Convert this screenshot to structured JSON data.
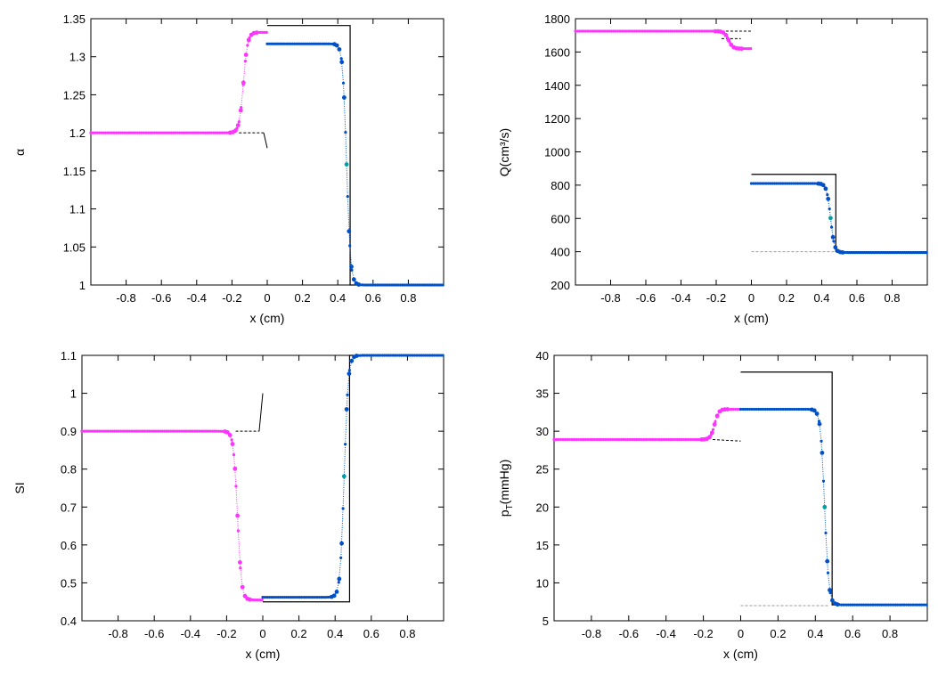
{
  "figure": {
    "colors": {
      "left_state": "#ff33ff",
      "right_state": "#0050c8",
      "right_state_alt": "#00a0a0",
      "exact": "#000000",
      "guide": "#999999"
    }
  },
  "chart_data": [
    {
      "type": "line",
      "name": "alpha",
      "ylabel": "α",
      "xlabel": "x (cm)",
      "xlim": [
        -1.0,
        1.0
      ],
      "ylim": [
        1.0,
        1.35
      ],
      "xticks": [
        -0.8,
        -0.6,
        -0.4,
        -0.2,
        0,
        0.2,
        0.4,
        0.6,
        0.8
      ],
      "xtick_labels": [
        "-0.8",
        "-0.6",
        "-0.4",
        "-0.2",
        "0",
        "0.2",
        "0.4",
        "0.6",
        "0.8"
      ],
      "yticks": [
        1.0,
        1.05,
        1.1,
        1.15,
        1.2,
        1.25,
        1.3,
        1.35
      ],
      "ytick_labels": [
        "1",
        "1.05",
        "1.1",
        "1.15",
        "1.2",
        "1.25",
        "1.3",
        "1.35"
      ],
      "exact_solution": [
        [
          0,
          1.341
        ],
        [
          0.47,
          1.341
        ],
        [
          0.47,
          1.0
        ],
        [
          1.0,
          1.0
        ]
      ],
      "guide_lines": [
        {
          "style": "dashed",
          "points": [
            [
              -0.16,
              1.2
            ],
            [
              -0.02,
              1.2
            ]
          ]
        },
        {
          "style": "solid",
          "points": [
            [
              -0.02,
              1.2
            ],
            [
              0,
              1.18
            ]
          ]
        }
      ],
      "series": [
        {
          "name": "left",
          "x0": -1.0,
          "x1": 0,
          "step": 0.012,
          "levels": [
            1.2,
            1.332
          ],
          "front": -0.135,
          "width": 0.012
        },
        {
          "name": "right",
          "x0": 0,
          "x1": 1.0,
          "step": 0.012,
          "levels": [
            1.317,
            1.0
          ],
          "front": 0.45,
          "width": 0.011
        }
      ]
    },
    {
      "type": "line",
      "name": "Q",
      "ylabel": "Q(cm³/s)",
      "xlabel": "x (cm)",
      "xlim": [
        -1.0,
        1.0
      ],
      "ylim": [
        200,
        1800
      ],
      "xticks": [
        -0.8,
        -0.6,
        -0.4,
        -0.2,
        0,
        0.2,
        0.4,
        0.6,
        0.8
      ],
      "xtick_labels": [
        "-0.8",
        "-0.6",
        "-0.4",
        "-0.2",
        "0",
        "0.2",
        "0.4",
        "0.6",
        "0.8"
      ],
      "yticks": [
        200,
        400,
        600,
        800,
        1000,
        1200,
        1400,
        1600,
        1800
      ],
      "ytick_labels": [
        "200",
        "400",
        "600",
        "800",
        "1000",
        "1200",
        "1400",
        "1600",
        "1800"
      ],
      "exact_solution": [
        [
          0,
          865
        ],
        [
          0.48,
          865
        ],
        [
          0.48,
          400
        ],
        [
          1.0,
          400
        ]
      ],
      "guide_lines": [
        {
          "style": "dashed",
          "points": [
            [
              -0.17,
              1725
            ],
            [
              0,
              1725
            ]
          ]
        },
        {
          "style": "dashed",
          "points": [
            [
              -0.17,
              1680
            ],
            [
              -0.06,
              1680
            ]
          ]
        },
        {
          "style": "dashed-gray",
          "points": [
            [
              0,
              400
            ],
            [
              0.47,
              400
            ]
          ]
        }
      ],
      "series": [
        {
          "name": "left",
          "x0": -1.0,
          "x1": 0,
          "step": 0.012,
          "levels": [
            1725,
            1620
          ],
          "front": -0.13,
          "width": 0.012
        },
        {
          "name": "right",
          "x0": 0,
          "x1": 1.0,
          "step": 0.012,
          "levels": [
            810,
            395
          ],
          "front": 0.45,
          "width": 0.011
        }
      ]
    },
    {
      "type": "line",
      "name": "SI",
      "ylabel": "SI",
      "xlabel": "x (cm)",
      "xlim": [
        -1.0,
        1.0
      ],
      "ylim": [
        0.4,
        1.1
      ],
      "xticks": [
        -0.8,
        -0.6,
        -0.4,
        -0.2,
        0,
        0.2,
        0.4,
        0.6,
        0.8
      ],
      "xtick_labels": [
        "-0.8",
        "-0.6",
        "-0.4",
        "-0.2",
        "0",
        "0.2",
        "0.4",
        "0.6",
        "0.8"
      ],
      "yticks": [
        0.4,
        0.5,
        0.6,
        0.7,
        0.8,
        0.9,
        1.0,
        1.1
      ],
      "ytick_labels": [
        "0.4",
        "0.5",
        "0.6",
        "0.7",
        "0.8",
        "0.9",
        "1",
        "1.1"
      ],
      "exact_solution": [
        [
          0,
          0.45
        ],
        [
          0.48,
          0.45
        ],
        [
          0.48,
          1.1
        ],
        [
          1.0,
          1.1
        ]
      ],
      "guide_lines": [
        {
          "style": "dashed",
          "points": [
            [
              -0.15,
              0.9
            ],
            [
              -0.02,
              0.9
            ]
          ]
        },
        {
          "style": "solid",
          "points": [
            [
              -0.02,
              0.9
            ],
            [
              0,
              1.0
            ]
          ]
        }
      ],
      "series": [
        {
          "name": "left",
          "x0": -1.0,
          "x1": 0,
          "step": 0.012,
          "levels": [
            0.9,
            0.455
          ],
          "front": -0.14,
          "width": 0.011
        },
        {
          "name": "right",
          "x0": 0,
          "x1": 1.0,
          "step": 0.012,
          "levels": [
            0.462,
            1.1
          ],
          "front": 0.45,
          "width": 0.011
        }
      ]
    },
    {
      "type": "line",
      "name": "pT",
      "ylabel": "pT(mmHg)",
      "ylabel_main": "p",
      "ylabel_sub": "T",
      "ylabel_unit": "(mmHg)",
      "xlabel": "x (cm)",
      "xlim": [
        -1.0,
        1.0
      ],
      "ylim": [
        5,
        40
      ],
      "xticks": [
        -0.8,
        -0.6,
        -0.4,
        -0.2,
        0,
        0.2,
        0.4,
        0.6,
        0.8
      ],
      "xtick_labels": [
        "-0.8",
        "-0.6",
        "-0.4",
        "-0.2",
        "0",
        "0.2",
        "0.4",
        "0.6",
        "0.8"
      ],
      "yticks": [
        5,
        10,
        15,
        20,
        25,
        30,
        35,
        40
      ],
      "ytick_labels": [
        "5",
        "10",
        "15",
        "20",
        "25",
        "30",
        "35",
        "40"
      ],
      "exact_solution": [
        [
          0,
          37.8
        ],
        [
          0.49,
          37.8
        ],
        [
          0.49,
          7.1
        ],
        [
          1.0,
          7.1
        ]
      ],
      "guide_lines": [
        {
          "style": "dashed",
          "points": [
            [
              -0.15,
              28.9
            ],
            [
              0,
              28.7
            ]
          ]
        },
        {
          "style": "dashed-gray",
          "points": [
            [
              0,
              7.0
            ],
            [
              0.47,
              7.0
            ]
          ]
        }
      ],
      "series": [
        {
          "name": "left",
          "x0": -1.0,
          "x1": 0,
          "step": 0.012,
          "levels": [
            28.9,
            32.9
          ],
          "front": -0.14,
          "width": 0.011
        },
        {
          "name": "right",
          "x0": 0,
          "x1": 1.0,
          "step": 0.012,
          "levels": [
            32.9,
            7.1
          ],
          "front": 0.45,
          "width": 0.011
        }
      ]
    }
  ]
}
